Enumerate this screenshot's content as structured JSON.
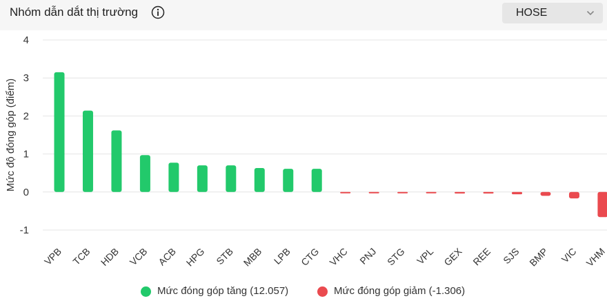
{
  "header": {
    "title": "Nhóm dẫn dắt thị trường",
    "info_icon": "info-circle-icon",
    "exchange_select": {
      "value": "HOSE",
      "icon": "chevron-down-icon"
    }
  },
  "legend": {
    "up_label": "Mức đóng góp tăng (12.057)",
    "down_label": "Mức đóng góp giảm (-1.306)"
  },
  "colors": {
    "up": "#22c96b",
    "down": "#ea4a4f",
    "grid": "#e4e4e4",
    "axis_text": "#333333"
  },
  "chart_data": {
    "type": "bar",
    "ylabel": "Mức độ đóng góp (điểm)",
    "ylim": [
      -1,
      4
    ],
    "yticks": [
      4,
      3,
      2,
      1,
      0,
      -1
    ],
    "grid": true,
    "legend_position": "bottom",
    "categories": [
      "VPB",
      "TCB",
      "HDB",
      "VCB",
      "ACB",
      "HPG",
      "STB",
      "MBB",
      "LPB",
      "CTG",
      "VHC",
      "PNJ",
      "STG",
      "VPL",
      "GEX",
      "REE",
      "SJS",
      "BMP",
      "VIC",
      "VHM"
    ],
    "values": [
      3.15,
      2.14,
      1.62,
      0.97,
      0.77,
      0.7,
      0.7,
      0.63,
      0.61,
      0.61,
      -0.02,
      -0.02,
      -0.02,
      -0.02,
      -0.04,
      -0.04,
      -0.06,
      -0.1,
      -0.17,
      -0.66
    ],
    "series": [
      {
        "name": "Mức đóng góp tăng (12.057)",
        "color": "#22c96b"
      },
      {
        "name": "Mức đóng góp giảm (-1.306)",
        "color": "#ea4a4f"
      }
    ]
  }
}
